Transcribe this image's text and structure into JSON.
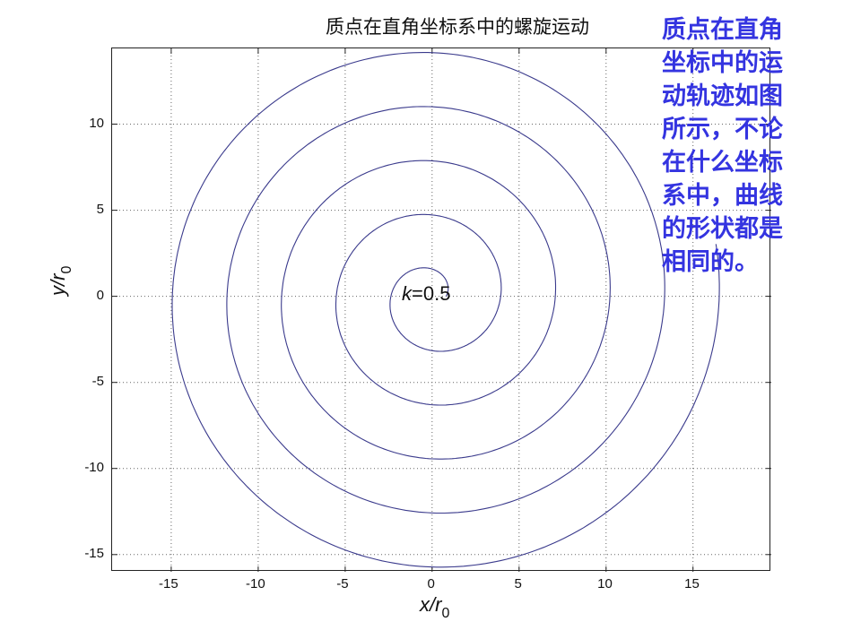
{
  "chart_data": {
    "type": "line",
    "title": "质点在直角坐标系中的螺旋运动",
    "xlabel": "x/r_0",
    "ylabel": "y/r_0",
    "xlabel_main": "x/r",
    "xlabel_sub": "0",
    "ylabel_main": "y/r",
    "ylabel_sub": "0",
    "xlim": [
      -18.4,
      19.5
    ],
    "ylim": [
      -16,
      14.4
    ],
    "xticks": [
      -15,
      -10,
      -5,
      0,
      5,
      10,
      15
    ],
    "yticks": [
      -15,
      -10,
      -5,
      0,
      5,
      10
    ],
    "grid": true,
    "grid_style": "dotted",
    "line_color": "#3a3a8c",
    "series": [
      {
        "name": "spiral",
        "parametric": "r = a*theta; x = r*cos(theta + phase), y = r*sin(theta + phase)",
        "a": 0.5,
        "theta_start": 1.6,
        "theta_end": 33.2,
        "phase": -1.6,
        "center": [
          0,
          0
        ]
      }
    ],
    "annotations": [
      {
        "text": "k=0.5",
        "x": 0,
        "y": 0
      }
    ]
  },
  "annotation": {
    "k_symbol": "k",
    "k_value": "=0.5"
  },
  "side_note": {
    "lines": [
      "质点在直角",
      "坐标中的运",
      "动轨迹如图",
      "所示，不论",
      "在什么坐标",
      "系中，曲线",
      "的形状都是",
      "相同的。"
    ],
    "color": "#3434e0"
  }
}
